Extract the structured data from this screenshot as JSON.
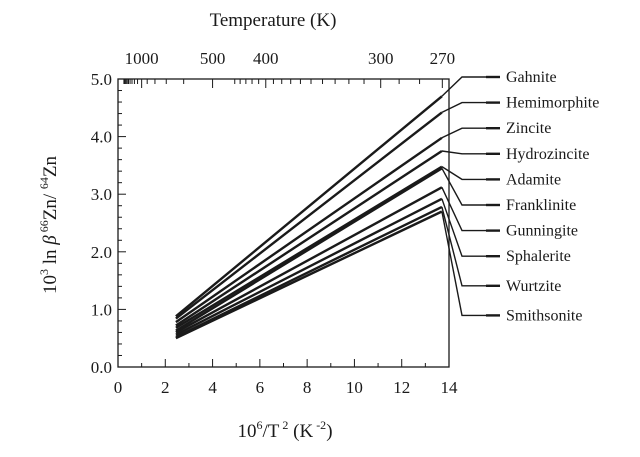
{
  "chart_data": {
    "type": "line",
    "title": "",
    "xlabel": "10⁶/T² (K⁻²)",
    "xlabel_parts": {
      "base1": "10",
      "sup1": "6",
      "mid": "/T",
      "sup2": " 2",
      "tail": " (K",
      "sup3": " -2",
      "close": ")"
    },
    "ylabel_parts": {
      "base1": "10",
      "sup1": "3",
      "mid": " ln ",
      "beta": "β",
      "sup2": " 66",
      "el1": "Zn/ ",
      "sup3": " 64",
      "el2": "Zn"
    },
    "top_axis_title": "Temperature (K)",
    "xlim": [
      0,
      14
    ],
    "ylim": [
      0,
      5
    ],
    "x_ticks": [
      0,
      2,
      4,
      6,
      8,
      10,
      12,
      14
    ],
    "x_tick_labels": [
      "0",
      "2",
      "4",
      "6",
      "8",
      "10",
      "12",
      "14"
    ],
    "y_ticks": [
      0,
      1,
      2,
      3,
      4,
      5
    ],
    "y_tick_labels": [
      "0.0",
      "1.0",
      "2.0",
      "3.0",
      "4.0",
      "5.0"
    ],
    "top_ticks": [
      1000,
      500,
      400,
      300,
      270
    ],
    "top_tick_labels": [
      "1000",
      "500",
      "400",
      "300",
      "270"
    ],
    "grid": false,
    "legend_position": "right",
    "series": [
      {
        "name": "Gahnite",
        "points": [
          [
            2.45,
            0.88
          ],
          [
            13.7,
            4.7
          ]
        ]
      },
      {
        "name": "Hemimorphite",
        "points": [
          [
            2.45,
            0.84
          ],
          [
            13.7,
            4.42
          ]
        ]
      },
      {
        "name": "Zincite",
        "points": [
          [
            2.45,
            0.78
          ],
          [
            13.7,
            3.98
          ]
        ]
      },
      {
        "name": "Hydrozincite",
        "points": [
          [
            2.45,
            0.72
          ],
          [
            13.7,
            3.75
          ]
        ]
      },
      {
        "name": "Adamite",
        "points": [
          [
            2.45,
            0.68
          ],
          [
            13.7,
            3.48
          ]
        ]
      },
      {
        "name": "Franklinite",
        "points": [
          [
            2.45,
            0.63
          ],
          [
            13.7,
            3.45
          ]
        ]
      },
      {
        "name": "Gunningite",
        "points": [
          [
            2.45,
            0.6
          ],
          [
            13.7,
            3.12
          ]
        ]
      },
      {
        "name": "Sphalerite",
        "points": [
          [
            2.45,
            0.56
          ],
          [
            13.7,
            2.92
          ]
        ]
      },
      {
        "name": "Wurtzite",
        "points": [
          [
            2.45,
            0.52
          ],
          [
            13.7,
            2.78
          ]
        ]
      },
      {
        "name": "Smithsonite",
        "points": [
          [
            2.45,
            0.5
          ],
          [
            13.7,
            2.7
          ]
        ]
      }
    ],
    "colors": {
      "ink": "#1a1a1a",
      "background": "#ffffff"
    }
  }
}
